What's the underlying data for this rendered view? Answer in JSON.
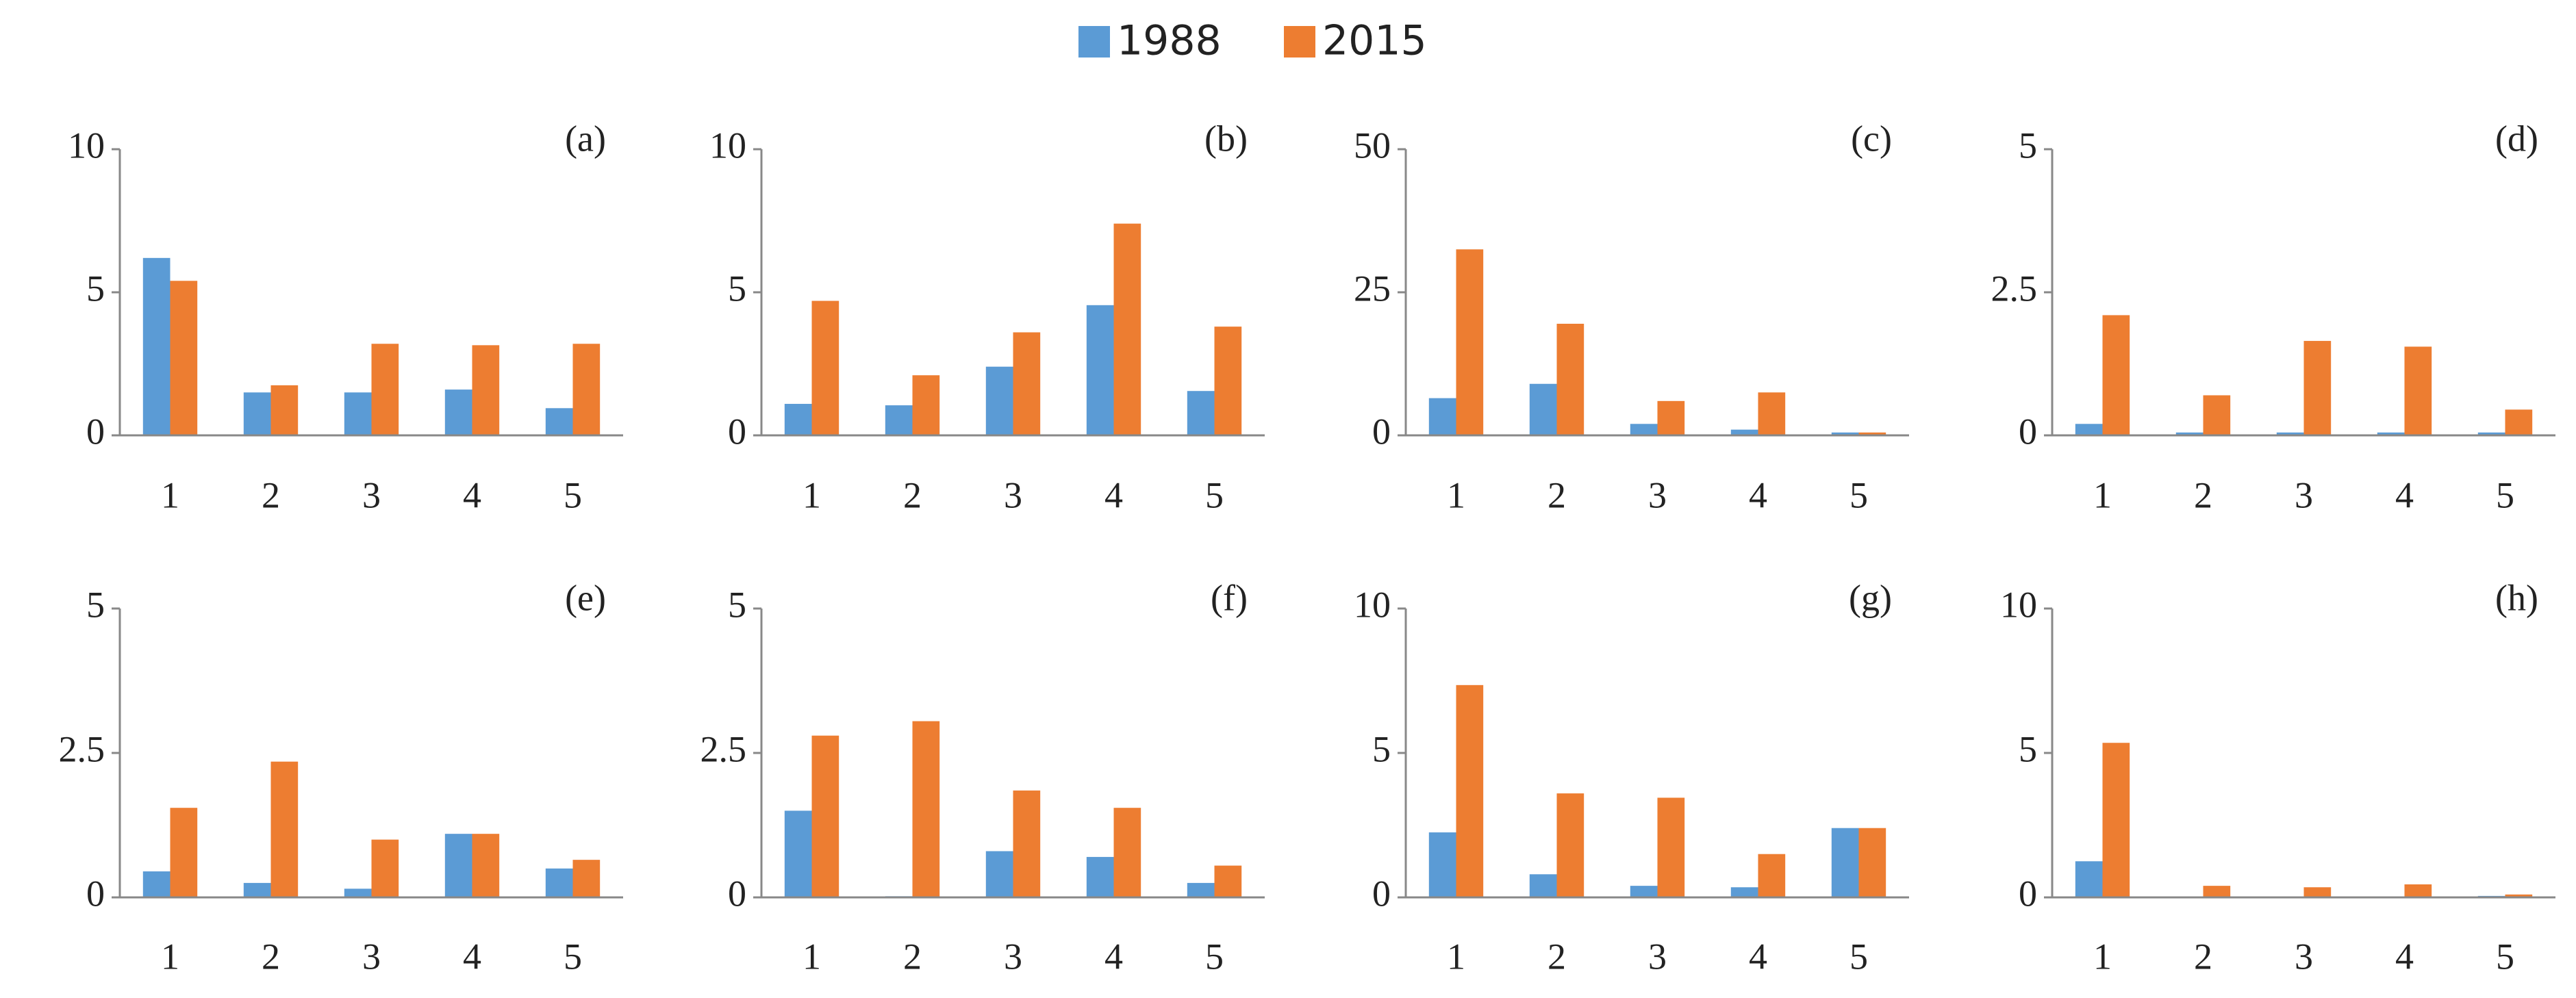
{
  "chart_data": [
    {
      "type": "bar",
      "annotation": "(a)",
      "categories": [
        "1",
        "2",
        "3",
        "4",
        "5"
      ],
      "ylim": [
        0,
        10
      ],
      "yticks": [
        0,
        5,
        10
      ],
      "series": [
        {
          "name": "1988",
          "color": "#5b9bd5",
          "values": [
            6.2,
            1.5,
            1.5,
            1.6,
            0.95
          ]
        },
        {
          "name": "2015",
          "color": "#ed7d31",
          "values": [
            5.4,
            1.75,
            3.2,
            3.15,
            3.2
          ]
        }
      ]
    },
    {
      "type": "bar",
      "annotation": "(b)",
      "categories": [
        "1",
        "2",
        "3",
        "4",
        "5"
      ],
      "ylim": [
        0,
        10
      ],
      "yticks": [
        0,
        5,
        10
      ],
      "series": [
        {
          "name": "1988",
          "color": "#5b9bd5",
          "values": [
            1.1,
            1.05,
            2.4,
            4.55,
            1.55
          ]
        },
        {
          "name": "2015",
          "color": "#ed7d31",
          "values": [
            4.7,
            2.1,
            3.6,
            7.4,
            3.8
          ]
        }
      ]
    },
    {
      "type": "bar",
      "annotation": "(c)",
      "categories": [
        "1",
        "2",
        "3",
        "4",
        "5"
      ],
      "ylim": [
        0,
        50
      ],
      "yticks": [
        0,
        25,
        50
      ],
      "series": [
        {
          "name": "1988",
          "color": "#5b9bd5",
          "values": [
            6.5,
            9,
            2,
            1,
            0.5
          ]
        },
        {
          "name": "2015",
          "color": "#ed7d31",
          "values": [
            32.5,
            19.5,
            6,
            7.5,
            0.5
          ]
        }
      ]
    },
    {
      "type": "bar",
      "annotation": "(d)",
      "categories": [
        "1",
        "2",
        "3",
        "4",
        "5"
      ],
      "ylim": [
        0,
        5
      ],
      "yticks": [
        0,
        2.5,
        5
      ],
      "series": [
        {
          "name": "1988",
          "color": "#5b9bd5",
          "values": [
            0.2,
            0.05,
            0.05,
            0.05,
            0.05
          ]
        },
        {
          "name": "2015",
          "color": "#ed7d31",
          "values": [
            2.1,
            0.7,
            1.65,
            1.55,
            0.45
          ]
        }
      ]
    },
    {
      "type": "bar",
      "annotation": "(e)",
      "categories": [
        "1",
        "2",
        "3",
        "4",
        "5"
      ],
      "ylim": [
        0,
        5
      ],
      "yticks": [
        0,
        2.5,
        5
      ],
      "series": [
        {
          "name": "1988",
          "color": "#5b9bd5",
          "values": [
            0.45,
            0.25,
            0.15,
            1.1,
            0.5
          ]
        },
        {
          "name": "2015",
          "color": "#ed7d31",
          "values": [
            1.55,
            2.35,
            1.0,
            1.1,
            0.65
          ]
        }
      ]
    },
    {
      "type": "bar",
      "annotation": "(f)",
      "categories": [
        "1",
        "2",
        "3",
        "4",
        "5"
      ],
      "ylim": [
        0,
        5
      ],
      "yticks": [
        0,
        2.5,
        5
      ],
      "series": [
        {
          "name": "1988",
          "color": "#5b9bd5",
          "values": [
            1.5,
            0.02,
            0.8,
            0.7,
            0.25
          ]
        },
        {
          "name": "2015",
          "color": "#ed7d31",
          "values": [
            2.8,
            3.05,
            1.85,
            1.55,
            0.55
          ]
        }
      ]
    },
    {
      "type": "bar",
      "annotation": "(g)",
      "categories": [
        "1",
        "2",
        "3",
        "4",
        "5"
      ],
      "ylim": [
        0,
        10
      ],
      "yticks": [
        0,
        5,
        10
      ],
      "series": [
        {
          "name": "1988",
          "color": "#5b9bd5",
          "values": [
            2.25,
            0.8,
            0.4,
            0.35,
            2.4
          ]
        },
        {
          "name": "2015",
          "color": "#ed7d31",
          "values": [
            7.35,
            3.6,
            3.45,
            1.5,
            2.4
          ]
        }
      ]
    },
    {
      "type": "bar",
      "annotation": "(h)",
      "categories": [
        "1",
        "2",
        "3",
        "4",
        "5"
      ],
      "ylim": [
        0,
        10
      ],
      "yticks": [
        0,
        5,
        10
      ],
      "series": [
        {
          "name": "1988",
          "color": "#5b9bd5",
          "values": [
            1.25,
            0,
            0,
            0,
            0.05
          ]
        },
        {
          "name": "2015",
          "color": "#ed7d31",
          "values": [
            5.35,
            0.4,
            0.35,
            0.45,
            0.1
          ]
        }
      ]
    }
  ]
}
